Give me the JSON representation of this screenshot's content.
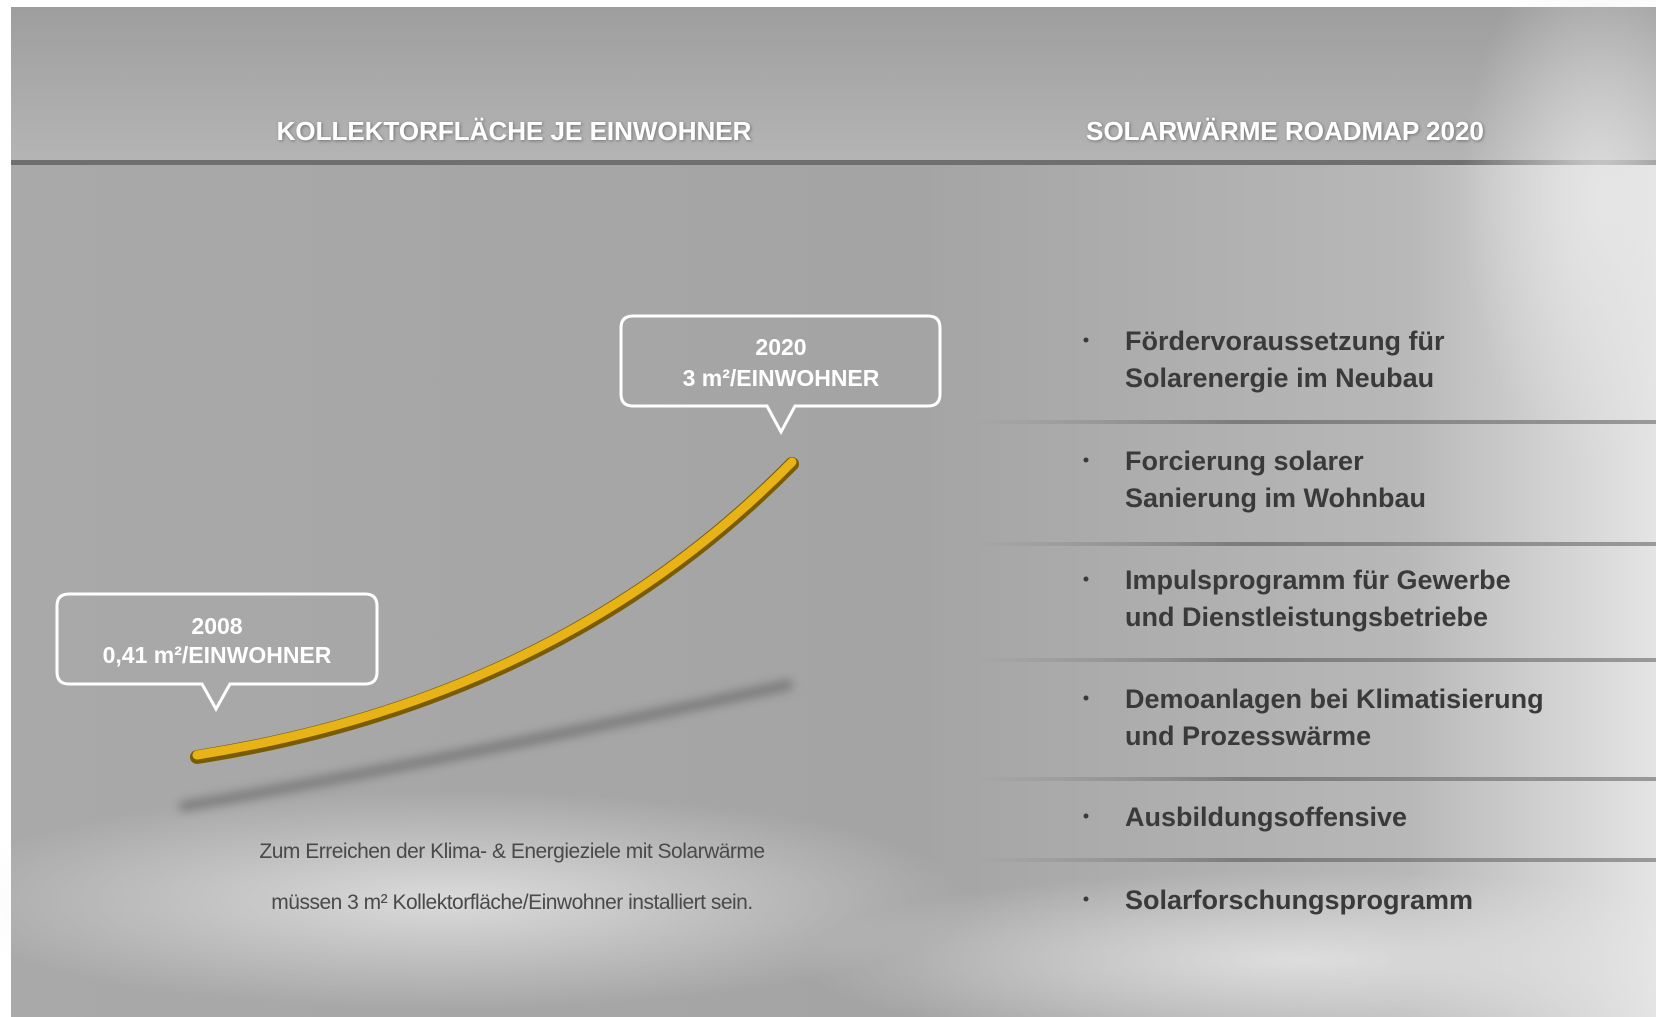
{
  "left": {
    "title": "KOLLEKTORFLÄCHE JE EINWOHNER",
    "callouts": [
      {
        "year": "2020",
        "value": "3 m²/EINWOHNER"
      },
      {
        "year": "2008",
        "value": "0,41 m²/EINWOHNER"
      }
    ],
    "caption": [
      "Zum Erreichen der Klima- & Energieziele mit Solarwärme",
      "müssen 3 m² Kollektorfläche/Einwohner installiert sein."
    ]
  },
  "right": {
    "title": "SOLARWÄRME ROADMAP 2020",
    "items": [
      [
        "Fördervoraussetzung für",
        "Solarenergie im Neubau"
      ],
      [
        "Forcierung solarer",
        "Sanierung im Wohnbau"
      ],
      [
        "Impulsprogramm für Gewerbe",
        "und Dienstleistungsbetriebe"
      ],
      [
        "Demoanlagen bei Klimatisierung",
        "und Prozesswärme"
      ],
      [
        "Ausbildungsoffensive"
      ],
      [
        "Solarforschungsprogramm"
      ]
    ]
  }
}
